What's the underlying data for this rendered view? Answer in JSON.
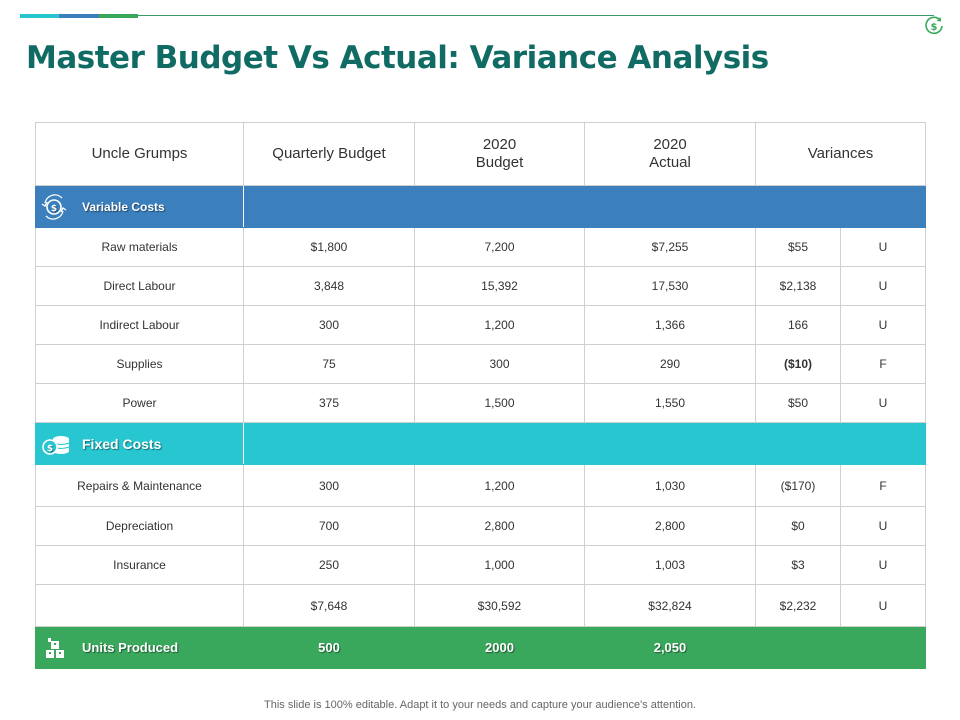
{
  "colors": {
    "title": "#0f6b64",
    "variable_costs_band": "#3b7fbd",
    "fixed_costs_band": "#27c6d0",
    "units_band": "#3aa85c",
    "top_bar": [
      "#27c6d0",
      "#3b7fbd",
      "#3aa85c"
    ]
  },
  "header": {
    "title": "Master Budget Vs Actual: Variance Analysis"
  },
  "table": {
    "columns": [
      "Uncle Grumps",
      "Quarterly Budget",
      "2020",
      "Budget",
      "2020",
      "Actual",
      "Variances"
    ],
    "variable_costs": {
      "label": "Variable Costs",
      "icon": "money-cycle-icon",
      "rows": [
        [
          "Raw materials",
          "$1,800",
          "7,200",
          "$7,255",
          "$55",
          "U"
        ],
        [
          "Direct Labour",
          "3,848",
          "15,392",
          "17,530",
          "$2,138",
          "U"
        ],
        [
          "Indirect Labour",
          "300",
          "1,200",
          "1,366",
          "166",
          "U"
        ],
        [
          "Supplies",
          "75",
          "300",
          "290",
          "($10)",
          "F"
        ],
        [
          "Power",
          "375",
          "1,500",
          "1,550",
          "$50",
          "U"
        ]
      ]
    },
    "fixed_costs": {
      "label": "Fixed Costs",
      "icon": "coins-icon",
      "rows": [
        [
          "Repairs & Maintenance",
          "300",
          "1,200",
          "1,030",
          "($170)",
          "F"
        ],
        [
          "Depreciation",
          "700",
          "2,800",
          "2,800",
          "$0",
          "U"
        ],
        [
          "Insurance",
          "250",
          "1,000",
          "1,003",
          "$3",
          "U"
        ]
      ]
    },
    "total_row": [
      "",
      "$7,648",
      "$30,592",
      "$32,824",
      "$2,232",
      "U"
    ],
    "units_produced": {
      "label": "Units Produced",
      "icon": "boxes-icon",
      "values": [
        "500",
        "2000",
        "2,050"
      ]
    }
  },
  "footer": {
    "note": "This slide is 100% editable. Adapt it to your needs and capture your audience's attention."
  }
}
